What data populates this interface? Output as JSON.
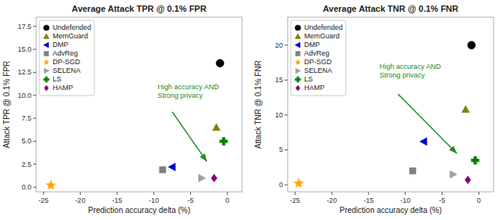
{
  "chart_data": [
    {
      "type": "scatter",
      "title": "Average Attack TPR @ 0.1% FPR",
      "x_label": "Prediction accuracy delta (%)",
      "y_label": "Attack TPR @ 0.1% FPR",
      "xlim": [
        -26,
        2
      ],
      "ylim": [
        -0.5,
        18.5
      ],
      "xticks": [
        -25,
        -20,
        -15,
        -10,
        -5,
        0
      ],
      "yticks": [
        {
          "value": 0.0,
          "label": "0.0"
        },
        2.5,
        {
          "value": 5.0,
          "label": "5.0"
        },
        7.5,
        {
          "value": 10.0,
          "label": "10.0"
        },
        12.5,
        {
          "value": 15.0,
          "label": "15.0"
        },
        17.5
      ],
      "legend": "upper left",
      "series": [
        {
          "name": "Undefended",
          "color": "#000000",
          "marker": "circle",
          "x": [
            -1.0
          ],
          "values": [
            13.5
          ]
        },
        {
          "name": "MemGuard",
          "color": "#808000",
          "marker": "triangle-up",
          "x": [
            -1.5
          ],
          "values": [
            6.5
          ]
        },
        {
          "name": "DMP",
          "color": "#0000cc",
          "marker": "triangle-left",
          "x": [
            -7.5
          ],
          "values": [
            2.2
          ]
        },
        {
          "name": "AdvReg",
          "color": "#808080",
          "marker": "square",
          "x": [
            -8.8
          ],
          "values": [
            1.9
          ]
        },
        {
          "name": "DP-SGD",
          "color": "#ffa500",
          "marker": "star",
          "x": [
            -24.0
          ],
          "values": [
            0.2
          ]
        },
        {
          "name": "SELENA",
          "color": "#a0a0a0",
          "marker": "triangle-right",
          "x": [
            -3.5
          ],
          "values": [
            1.0
          ]
        },
        {
          "name": "LS",
          "color": "#008000",
          "marker": "plus",
          "x": [
            -0.5
          ],
          "values": [
            5.0
          ]
        },
        {
          "name": "HAMP",
          "color": "#800080",
          "marker": "diamond",
          "x": [
            -1.8
          ],
          "values": [
            1.0
          ]
        }
      ],
      "annotations": [
        {
          "text": "High accuracy AND\nStrong privacy",
          "x": -9.5,
          "y": 9.5,
          "color": "#228b22",
          "arrow": {
            "x": [
              -7.5,
              -2.8
            ],
            "y": [
              8.2,
              2.8
            ],
            "color": "#228b22"
          }
        }
      ]
    },
    {
      "type": "scatter",
      "title": "Average Attack TNR @ 0.1% FNR",
      "x_label": "Prediction accuracy delta (%)",
      "y_label": "Attack TNR @ 0.1% FNR",
      "xlim": [
        -26,
        2
      ],
      "ylim": [
        -1.0,
        24.0
      ],
      "xticks": [
        -25,
        -20,
        -15,
        -10,
        -5,
        0
      ],
      "yticks": [
        0,
        5,
        10,
        15,
        20
      ],
      "legend": "upper left",
      "series": [
        {
          "name": "Undefended",
          "color": "#000000",
          "marker": "circle",
          "x": [
            -1.0
          ],
          "values": [
            20.0
          ]
        },
        {
          "name": "MemGuard",
          "color": "#808000",
          "marker": "triangle-up",
          "x": [
            -1.8
          ],
          "values": [
            10.8
          ]
        },
        {
          "name": "DMP",
          "color": "#0000cc",
          "marker": "triangle-left",
          "x": [
            -7.5
          ],
          "values": [
            6.2
          ]
        },
        {
          "name": "AdvReg",
          "color": "#808080",
          "marker": "square",
          "x": [
            -9.0
          ],
          "values": [
            2.0
          ]
        },
        {
          "name": "DP-SGD",
          "color": "#ffa500",
          "marker": "star",
          "x": [
            -24.5
          ],
          "values": [
            0.2
          ]
        },
        {
          "name": "SELENA",
          "color": "#a0a0a0",
          "marker": "triangle-right",
          "x": [
            -3.5
          ],
          "values": [
            1.5
          ]
        },
        {
          "name": "LS",
          "color": "#008000",
          "marker": "plus",
          "x": [
            -0.5
          ],
          "values": [
            3.5
          ]
        },
        {
          "name": "HAMP",
          "color": "#800080",
          "marker": "diamond",
          "x": [
            -1.5
          ],
          "values": [
            0.7
          ]
        }
      ],
      "annotations": [
        {
          "text": "High accuracy AND\nStrong privacy",
          "x": -13.5,
          "y": 15.0,
          "color": "#228b22",
          "arrow": {
            "x": [
              -11.0,
              -3.0
            ],
            "y": [
              13.0,
              4.5
            ],
            "color": "#228b22"
          }
        }
      ]
    }
  ]
}
